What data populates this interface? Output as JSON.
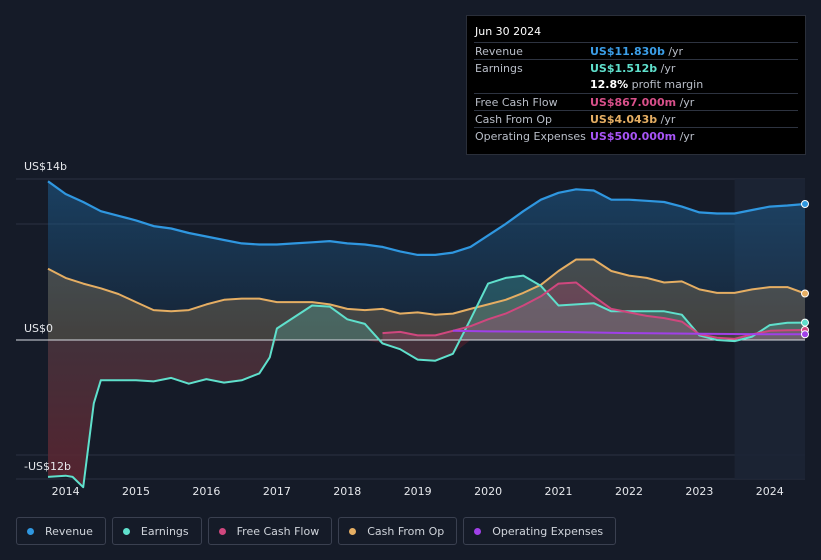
{
  "colors": {
    "revenue": "#2f97e0",
    "earnings": "#5fe0cc",
    "fcf": "#d0477e",
    "cfo": "#e5ae63",
    "opex": "#a040e8",
    "background": "#151b28"
  },
  "tooltip": {
    "date": "Jun 30 2024",
    "rows": [
      {
        "label": "Revenue",
        "value": "US$11.830b",
        "unit": " /yr",
        "color": "#3b9ee8"
      },
      {
        "label": "Earnings",
        "value": "US$1.512b",
        "unit": " /yr",
        "color": "#5fe0cc"
      },
      {
        "label": "",
        "value": "12.8%",
        "unit": " profit margin",
        "color": "#ffffff"
      },
      {
        "label": "Free Cash Flow",
        "value": "US$867.000m",
        "unit": " /yr",
        "color": "#d8508a"
      },
      {
        "label": "Cash From Op",
        "value": "US$4.043b",
        "unit": " /yr",
        "color": "#e5ae63"
      },
      {
        "label": "Operating Expenses",
        "value": "US$500.000m",
        "unit": " /yr",
        "color": "#a855f7"
      }
    ]
  },
  "legend": [
    {
      "label": "Revenue",
      "color": "#2f97e0"
    },
    {
      "label": "Earnings",
      "color": "#5fe0cc"
    },
    {
      "label": "Free Cash Flow",
      "color": "#d0477e"
    },
    {
      "label": "Cash From Op",
      "color": "#e5ae63"
    },
    {
      "label": "Operating Expenses",
      "color": "#a040e8"
    }
  ],
  "chart_data": {
    "type": "area",
    "title": "",
    "xlabel": "",
    "ylabel": "",
    "ylim": [
      -12,
      14
    ],
    "xlim": [
      2013.75,
      2024.5
    ],
    "y_tick_labels": [
      "US$14b",
      "US$0",
      "-US$12b"
    ],
    "x_tick_labels": [
      "2014",
      "2015",
      "2016",
      "2017",
      "2018",
      "2019",
      "2020",
      "2021",
      "2022",
      "2023",
      "2024"
    ],
    "forecast_band_start": 2023.5,
    "series": [
      {
        "name": "Revenue",
        "key": "revenue",
        "points": [
          [
            2013.75,
            13.8
          ],
          [
            2014.0,
            12.7
          ],
          [
            2014.25,
            12.0
          ],
          [
            2014.5,
            11.2
          ],
          [
            2014.75,
            10.8
          ],
          [
            2015.0,
            10.4
          ],
          [
            2015.25,
            9.9
          ],
          [
            2015.5,
            9.7
          ],
          [
            2015.75,
            9.3
          ],
          [
            2016.0,
            9.0
          ],
          [
            2016.25,
            8.7
          ],
          [
            2016.5,
            8.4
          ],
          [
            2016.75,
            8.3
          ],
          [
            2017.0,
            8.3
          ],
          [
            2017.25,
            8.4
          ],
          [
            2017.5,
            8.5
          ],
          [
            2017.75,
            8.6
          ],
          [
            2018.0,
            8.4
          ],
          [
            2018.25,
            8.3
          ],
          [
            2018.5,
            8.1
          ],
          [
            2018.75,
            7.7
          ],
          [
            2019.0,
            7.4
          ],
          [
            2019.25,
            7.4
          ],
          [
            2019.5,
            7.6
          ],
          [
            2019.75,
            8.1
          ],
          [
            2020.0,
            9.1
          ],
          [
            2020.25,
            10.1
          ],
          [
            2020.5,
            11.2
          ],
          [
            2020.75,
            12.2
          ],
          [
            2021.0,
            12.8
          ],
          [
            2021.25,
            13.1
          ],
          [
            2021.5,
            13.0
          ],
          [
            2021.75,
            12.2
          ],
          [
            2022.0,
            12.2
          ],
          [
            2022.25,
            12.1
          ],
          [
            2022.5,
            12.0
          ],
          [
            2022.75,
            11.6
          ],
          [
            2023.0,
            11.1
          ],
          [
            2023.25,
            11.0
          ],
          [
            2023.5,
            11.0
          ],
          [
            2023.75,
            11.3
          ],
          [
            2024.0,
            11.6
          ],
          [
            2024.25,
            11.7
          ],
          [
            2024.5,
            11.83
          ]
        ]
      },
      {
        "name": "Cash From Op",
        "key": "cfo",
        "points": [
          [
            2013.75,
            6.2
          ],
          [
            2014.0,
            5.4
          ],
          [
            2014.25,
            4.9
          ],
          [
            2014.5,
            4.5
          ],
          [
            2014.75,
            4.0
          ],
          [
            2015.0,
            3.3
          ],
          [
            2015.25,
            2.6
          ],
          [
            2015.5,
            2.5
          ],
          [
            2015.75,
            2.6
          ],
          [
            2016.0,
            3.1
          ],
          [
            2016.25,
            3.5
          ],
          [
            2016.5,
            3.6
          ],
          [
            2016.75,
            3.6
          ],
          [
            2017.0,
            3.3
          ],
          [
            2017.25,
            3.3
          ],
          [
            2017.5,
            3.3
          ],
          [
            2017.75,
            3.1
          ],
          [
            2018.0,
            2.7
          ],
          [
            2018.25,
            2.6
          ],
          [
            2018.5,
            2.7
          ],
          [
            2018.75,
            2.3
          ],
          [
            2019.0,
            2.4
          ],
          [
            2019.25,
            2.2
          ],
          [
            2019.5,
            2.3
          ],
          [
            2019.75,
            2.7
          ],
          [
            2020.0,
            3.1
          ],
          [
            2020.25,
            3.5
          ],
          [
            2020.5,
            4.1
          ],
          [
            2020.75,
            4.8
          ],
          [
            2021.0,
            6.0
          ],
          [
            2021.25,
            7.0
          ],
          [
            2021.5,
            7.0
          ],
          [
            2021.75,
            6.0
          ],
          [
            2022.0,
            5.6
          ],
          [
            2022.25,
            5.4
          ],
          [
            2022.5,
            5.0
          ],
          [
            2022.75,
            5.1
          ],
          [
            2023.0,
            4.4
          ],
          [
            2023.25,
            4.1
          ],
          [
            2023.5,
            4.1
          ],
          [
            2023.75,
            4.4
          ],
          [
            2024.0,
            4.6
          ],
          [
            2024.25,
            4.6
          ],
          [
            2024.5,
            4.043
          ]
        ]
      },
      {
        "name": "Earnings",
        "key": "earnings",
        "points": [
          [
            2013.75,
            -11.9
          ],
          [
            2014.0,
            -11.8
          ],
          [
            2014.1,
            -11.9
          ],
          [
            2014.25,
            -12.8
          ],
          [
            2014.4,
            -5.5
          ],
          [
            2014.5,
            -3.5
          ],
          [
            2014.75,
            -3.5
          ],
          [
            2015.0,
            -3.5
          ],
          [
            2015.25,
            -3.6
          ],
          [
            2015.5,
            -3.3
          ],
          [
            2015.75,
            -3.8
          ],
          [
            2016.0,
            -3.4
          ],
          [
            2016.25,
            -3.7
          ],
          [
            2016.5,
            -3.5
          ],
          [
            2016.75,
            -2.9
          ],
          [
            2016.9,
            -1.5
          ],
          [
            2017.0,
            1.0
          ],
          [
            2017.25,
            2.0
          ],
          [
            2017.5,
            3.0
          ],
          [
            2017.75,
            2.9
          ],
          [
            2018.0,
            1.8
          ],
          [
            2018.25,
            1.4
          ],
          [
            2018.5,
            -0.3
          ],
          [
            2018.75,
            -0.8
          ],
          [
            2019.0,
            -1.7
          ],
          [
            2019.25,
            -1.8
          ],
          [
            2019.5,
            -1.2
          ],
          [
            2019.75,
            1.8
          ],
          [
            2020.0,
            4.9
          ],
          [
            2020.25,
            5.4
          ],
          [
            2020.5,
            5.6
          ],
          [
            2020.75,
            4.7
          ],
          [
            2021.0,
            3.0
          ],
          [
            2021.25,
            3.1
          ],
          [
            2021.5,
            3.2
          ],
          [
            2021.75,
            2.5
          ],
          [
            2022.0,
            2.5
          ],
          [
            2022.25,
            2.5
          ],
          [
            2022.5,
            2.5
          ],
          [
            2022.75,
            2.2
          ],
          [
            2023.0,
            0.4
          ],
          [
            2023.25,
            0.0
          ],
          [
            2023.5,
            -0.1
          ],
          [
            2023.75,
            0.3
          ],
          [
            2024.0,
            1.3
          ],
          [
            2024.25,
            1.5
          ],
          [
            2024.5,
            1.512
          ]
        ]
      },
      {
        "name": "Free Cash Flow",
        "key": "fcf",
        "points": [
          [
            2018.5,
            0.6
          ],
          [
            2018.75,
            0.7
          ],
          [
            2019.0,
            0.4
          ],
          [
            2019.25,
            0.4
          ],
          [
            2019.5,
            0.8
          ],
          [
            2019.75,
            1.2
          ],
          [
            2020.0,
            1.8
          ],
          [
            2020.25,
            2.3
          ],
          [
            2020.5,
            3.0
          ],
          [
            2020.75,
            3.8
          ],
          [
            2021.0,
            4.9
          ],
          [
            2021.25,
            5.0
          ],
          [
            2021.5,
            3.8
          ],
          [
            2021.75,
            2.7
          ],
          [
            2022.0,
            2.4
          ],
          [
            2022.25,
            2.1
          ],
          [
            2022.5,
            1.9
          ],
          [
            2022.75,
            1.6
          ],
          [
            2023.0,
            0.5
          ],
          [
            2023.25,
            0.2
          ],
          [
            2023.5,
            0.1
          ],
          [
            2023.75,
            0.5
          ],
          [
            2024.0,
            0.8
          ],
          [
            2024.25,
            0.85
          ],
          [
            2024.5,
            0.867
          ]
        ]
      },
      {
        "name": "Operating Expenses",
        "key": "opex",
        "points": [
          [
            2019.5,
            0.8
          ],
          [
            2020.0,
            0.75
          ],
          [
            2021.0,
            0.7
          ],
          [
            2022.0,
            0.6
          ],
          [
            2023.0,
            0.55
          ],
          [
            2024.0,
            0.5
          ],
          [
            2024.5,
            0.5
          ]
        ]
      }
    ]
  }
}
